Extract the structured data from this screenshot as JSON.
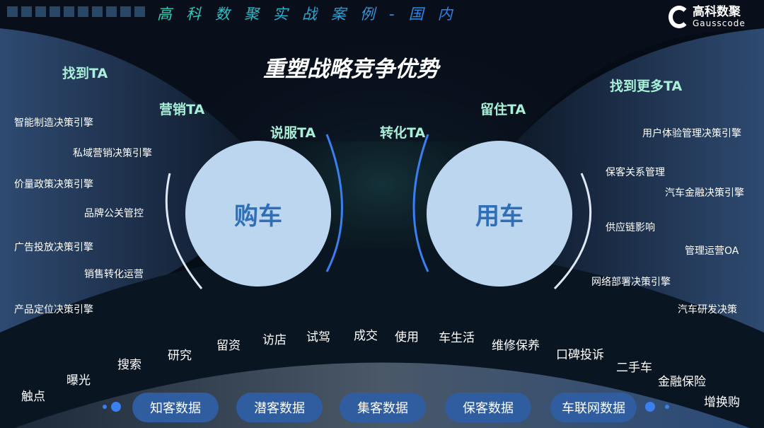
{
  "header": {
    "title": "高科数聚实战案例-国内",
    "logo_cn": "高科数聚",
    "logo_en": "Gausscode"
  },
  "title": "重塑战略竞争优势",
  "ta_labels": [
    "找到TA",
    "营销TA",
    "说服TA",
    "转化TA",
    "留住TA",
    "找到更多TA"
  ],
  "left_items": [
    "智能制造决策引擎",
    "私域营销决策引擎",
    "价量政策决策引擎",
    "品牌公关管控",
    "广告投放决策引擎",
    "销售转化运营",
    "产品定位决策引擎"
  ],
  "right_items": [
    "用户体验管理决策引擎",
    "保客关系管理",
    "汽车金融决策引擎",
    "供应链影响",
    "管理运营OA",
    "网络部署决策引擎",
    "汽车研发决策"
  ],
  "circles": {
    "buy": "购车",
    "use": "用车"
  },
  "stages": [
    "触点",
    "曝光",
    "搜索",
    "研究",
    "留资",
    "访店",
    "试驾",
    "成交",
    "使用",
    "车生活",
    "维修保养",
    "口碑投诉",
    "二手车",
    "金融保险",
    "增换购"
  ],
  "pills": [
    "知客数据",
    "潜客数据",
    "集客数据",
    "保客数据",
    "车联网数据"
  ],
  "colors": {
    "accent": "#3b7ff0",
    "ta_text": "#a8f0d8",
    "circle": "#bcd6f0",
    "pill": "#2f5da0"
  }
}
